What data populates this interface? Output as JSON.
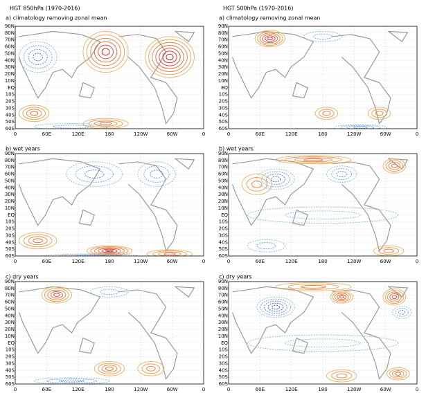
{
  "columns": [
    {
      "title": "HGT 850hPa (1970-2016)",
      "panels": [
        "a) climatology removing zonal mean",
        "b) wet years",
        "c) dry years"
      ]
    },
    {
      "title": "HGT 500hPa (1970-2016)",
      "panels": [
        "a) climatology removing zonal mean",
        "b) wet years",
        "c) dry years"
      ]
    }
  ],
  "lat_labels": [
    "90N",
    "80N",
    "70N",
    "60N",
    "50N",
    "40N",
    "30N",
    "20N",
    "10N",
    "EQ",
    "10S",
    "20S",
    "30S",
    "40S",
    "50S",
    "60S"
  ],
  "lon_labels": [
    "0",
    "60E",
    "120E",
    "180",
    "120W",
    "60W",
    "0"
  ]
}
